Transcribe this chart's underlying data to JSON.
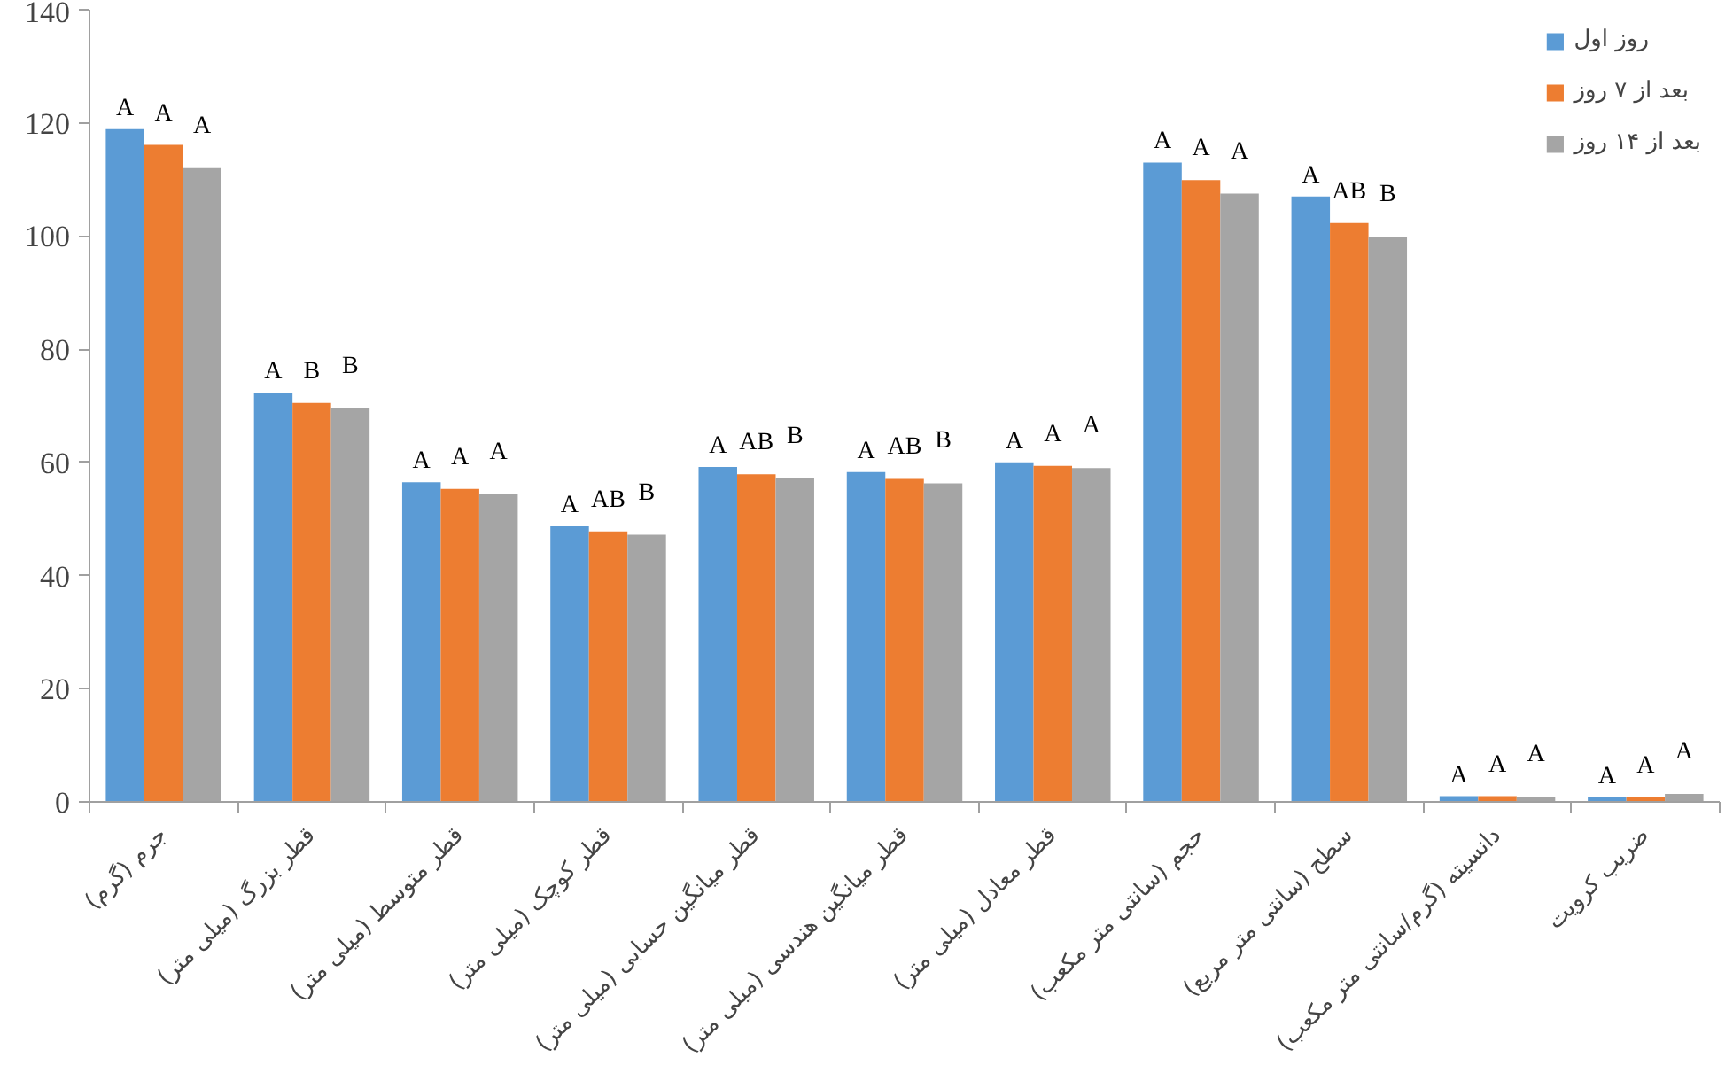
{
  "chart_data": {
    "type": "bar",
    "categories": [
      "جرم (گرم)",
      "قطر بزرگ (میلی متر)",
      "قطر متوسط (میلی متر)",
      "قطر کوچک (میلی متر)",
      "قطر میانگین حسابی (میلی متر)",
      "قطر میانگین هندسی (میلی متر)",
      "قطر معادل (میلی متر)",
      "حجم (سانتی متر مکعب)",
      "سطح (سانتی متر مربع)",
      "دانسیته (گرم/سانتی متر مکعب)",
      "ضریب کرویت"
    ],
    "series": [
      {
        "name": "روز اول",
        "color": "#5b9bd5",
        "values": [
          118.9,
          72.3,
          56.5,
          48.7,
          59.2,
          58.3,
          60,
          113,
          107,
          1,
          0.8
        ],
        "value_labels": [
          "A",
          "A",
          "A",
          "A",
          "A",
          "A",
          "A",
          "A",
          "A",
          "A",
          "A"
        ]
      },
      {
        "name": "بعد از ۷ روز",
        "color": "#ed7d31",
        "values": [
          116.1,
          70.5,
          55.3,
          47.8,
          57.9,
          57.1,
          59.4,
          109.9,
          102.3,
          1,
          0.8
        ],
        "value_labels": [
          "A",
          "B",
          "A",
          "AB",
          "AB",
          "AB",
          "A",
          "A",
          "AB",
          "A",
          "A"
        ]
      },
      {
        "name": "بعد از ۱۴ روز",
        "color": "#a5a5a5",
        "values": [
          112,
          69.6,
          54.4,
          47.2,
          57.2,
          56.3,
          59,
          107.5,
          99.9,
          0.9,
          1.4
        ],
        "value_labels": [
          "A",
          "B",
          "A",
          "B",
          "B",
          "B",
          "A",
          "A",
          "B",
          "A",
          "A"
        ]
      }
    ],
    "ylim": [
      0,
      140
    ],
    "yticks": [
      0,
      20,
      40,
      60,
      80,
      100,
      120,
      140
    ],
    "grid": false,
    "legend": "top right"
  }
}
